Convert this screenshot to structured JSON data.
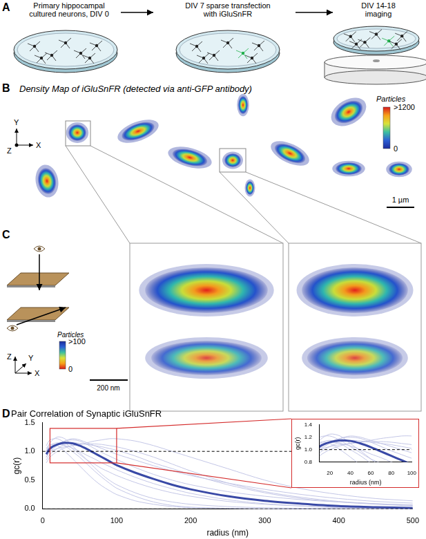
{
  "figure": {
    "A": {
      "label": "A",
      "steps": [
        [
          "Primary hippocampal",
          "cultured neurons, DIV 0"
        ],
        [
          "DIV 7 sparse transfection",
          "with iGluSnFR"
        ],
        [
          "DIV 14-18",
          "imaging"
        ]
      ]
    },
    "B": {
      "label": "B",
      "title": "Density Map of iGluSnFR (detected via anti-GFP antibody)",
      "axes": [
        "X",
        "Y",
        "Z"
      ],
      "colorbar": {
        "title": "Particles",
        "range": [
          0,
          1200
        ],
        "ticks": [
          {
            "value": 1200,
            "label": ">1200"
          },
          0
        ]
      },
      "scale_bar": "1 µm"
    },
    "C": {
      "label": "C",
      "axes": [
        "X",
        "Y",
        "Z"
      ],
      "colorbar": {
        "title": "Particles",
        "range": [
          0,
          100
        ],
        "ticks": [
          {
            "value": 100,
            "label": ">100"
          },
          0
        ]
      },
      "scale_bar": "200 nm"
    },
    "D": {
      "label": "D"
    }
  },
  "chart_data": {
    "type": "line",
    "title": "Pair Correlation of Synaptic iGluSnFR",
    "x_label": "radius (nm)",
    "y_label": "gc(r)",
    "x": [
      5,
      10,
      20,
      30,
      40,
      50,
      60,
      70,
      80,
      90,
      100,
      125,
      150,
      175,
      200,
      250,
      300,
      350,
      400,
      450,
      500
    ],
    "series": [
      {
        "color": "#c3c6e6",
        "values": [
          1.0,
          1.15,
          1.25,
          1.22,
          1.1,
          0.98,
          0.85,
          0.72,
          0.6,
          0.5,
          0.42,
          0.28,
          0.18,
          0.12,
          0.08,
          0.04,
          0.02,
          0.01,
          0.005,
          0,
          0
        ]
      },
      {
        "color": "#c3c6e6",
        "values": [
          0.9,
          1.0,
          1.1,
          1.18,
          1.22,
          1.2,
          1.15,
          1.1,
          1.05,
          1.0,
          0.95,
          0.85,
          0.75,
          0.66,
          0.58,
          0.45,
          0.34,
          0.25,
          0.18,
          0.13,
          0.1
        ]
      },
      {
        "color": "#c3c6e6",
        "values": [
          1.05,
          1.12,
          1.1,
          1.0,
          0.88,
          0.75,
          0.62,
          0.5,
          0.4,
          0.32,
          0.25,
          0.14,
          0.08,
          0.04,
          0.02,
          0.01,
          0,
          0,
          0,
          0,
          0
        ]
      },
      {
        "color": "#c3c6e6",
        "values": [
          0.85,
          0.95,
          1.05,
          1.12,
          1.15,
          1.14,
          1.12,
          1.1,
          1.08,
          1.05,
          1.02,
          0.92,
          0.8,
          0.7,
          0.6,
          0.42,
          0.28,
          0.18,
          0.12,
          0.08,
          0.05
        ]
      },
      {
        "color": "#c3c6e6",
        "values": [
          1.1,
          1.2,
          1.22,
          1.15,
          1.05,
          0.95,
          0.85,
          0.78,
          0.7,
          0.64,
          0.58,
          0.46,
          0.36,
          0.28,
          0.22,
          0.13,
          0.08,
          0.05,
          0.03,
          0.02,
          0.01
        ]
      },
      {
        "color": "#c3c6e6",
        "values": [
          0.95,
          1.0,
          1.05,
          1.08,
          1.1,
          1.12,
          1.15,
          1.18,
          1.2,
          1.22,
          1.22,
          1.18,
          1.1,
          1.0,
          0.9,
          0.7,
          0.5,
          0.35,
          0.25,
          0.18,
          0.14
        ]
      },
      {
        "color": "#c3c6e6",
        "values": [
          1.0,
          1.1,
          1.15,
          1.1,
          1.0,
          0.9,
          0.78,
          0.66,
          0.55,
          0.45,
          0.36,
          0.22,
          0.12,
          0.06,
          0.03,
          0.01,
          0,
          0,
          0,
          0,
          0
        ]
      },
      {
        "color": "#c3c6e6",
        "values": [
          0.9,
          1.02,
          1.12,
          1.18,
          1.2,
          1.18,
          1.12,
          1.05,
          0.98,
          0.92,
          0.86,
          0.72,
          0.6,
          0.5,
          0.42,
          0.3,
          0.22,
          0.16,
          0.12,
          0.09,
          0.07
        ]
      },
      {
        "color": "#c3c6e6",
        "values": [
          1.0,
          1.08,
          1.12,
          1.1,
          1.06,
          1.0,
          0.93,
          0.87,
          0.8,
          0.74,
          0.68,
          0.55,
          0.44,
          0.35,
          0.27,
          0.16,
          0.09,
          0.05,
          0.02,
          0.01,
          0
        ]
      },
      {
        "color": "#c3c6e6",
        "values": [
          0.8,
          0.9,
          1.0,
          1.06,
          1.1,
          1.12,
          1.13,
          1.13,
          1.12,
          1.1,
          1.08,
          1.0,
          0.9,
          0.78,
          0.66,
          0.45,
          0.3,
          0.2,
          0.13,
          0.09,
          0.06
        ]
      },
      {
        "color": "#3949a6",
        "values": [
          0.95,
          1.05,
          1.12,
          1.15,
          1.14,
          1.1,
          1.04,
          0.97,
          0.9,
          0.83,
          0.76,
          0.63,
          0.52,
          0.42,
          0.34,
          0.22,
          0.14,
          0.09,
          0.05,
          0.03,
          0.015
        ]
      }
    ],
    "reference_lines": [
      1,
      0
    ],
    "xlim": [
      0,
      500
    ],
    "xticks": [
      0,
      100,
      200,
      300,
      400,
      500
    ],
    "ylim": [
      0,
      1.5
    ],
    "yticks": [
      {
        "value": 0,
        "label": "0.0"
      },
      {
        "value": 0.5,
        "label": "0.5"
      },
      {
        "value": 1,
        "label": "1.0"
      },
      {
        "value": 1.5,
        "label": "1.5"
      }
    ],
    "grid": false,
    "inset": {
      "x_label": "radius (nm)",
      "y_label": "gc(r)",
      "xlim": [
        10,
        100
      ],
      "xticks": [
        20,
        40,
        60,
        80,
        100
      ],
      "ylim": [
        0.8,
        1.4
      ],
      "yticks": [
        {
          "value": 0.8,
          "label": "0.8"
        },
        {
          "value": 1,
          "label": "1.0"
        },
        {
          "value": 1.2,
          "label": "1.2"
        },
        {
          "value": 1.4,
          "label": "1.4"
        }
      ]
    }
  }
}
